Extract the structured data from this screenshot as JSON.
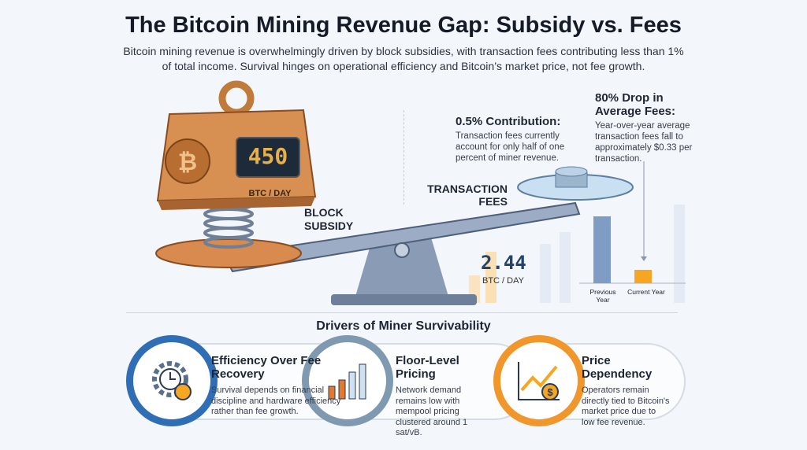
{
  "title": "The Bitcoin Mining Revenue Gap: Subsidy vs. Fees",
  "subtitle": "Bitcoin mining revenue is overwhelmingly driven by block subsidies, with transaction fees contributing less than 1% of total income. Survival hinges on operational efficiency and Bitcoin’s market price, not fee growth.",
  "scale": {
    "subsidy": {
      "value": "450",
      "unit": "BTC / DAY",
      "label": "BLOCK SUBSIDY"
    },
    "fees": {
      "value": "2.44",
      "unit": "BTC / DAY",
      "label": "TRANSACTION FEES"
    }
  },
  "callouts": [
    {
      "heading": "0.5% Contribution:",
      "text": "Transaction fees currently account for only half of one percent of miner revenue."
    },
    {
      "heading": "80% Drop in Average Fees:",
      "text": "Year-over-year average transaction fees fall to approximately $0.33 per transaction."
    }
  ],
  "fee_chart": {
    "categories": [
      "Previous Year",
      "Current Year"
    ],
    "values": [
      100,
      20
    ],
    "colors": [
      "#7f9cc4",
      "#f6a623"
    ]
  },
  "drivers": {
    "title": "Drivers of Miner Survivability",
    "items": [
      {
        "heading": "Efficiency Over Fee Recovery",
        "text": "Survival depends on financial discipline and hardware efficiency rather than fee growth.",
        "icon": "gear-clock-icon",
        "color": "#2f6db5"
      },
      {
        "heading": "Floor-Level Pricing",
        "text": "Network demand remains low with mempool pricing clustered around 1 sat/vB.",
        "icon": "bar-chart-icon",
        "color": "#6f8fa8"
      },
      {
        "heading": "Price Dependency",
        "text": "Operators remain directly tied to Bitcoin's market price due to low fee revenue.",
        "icon": "price-trend-icon",
        "color": "#f0962a"
      }
    ]
  }
}
